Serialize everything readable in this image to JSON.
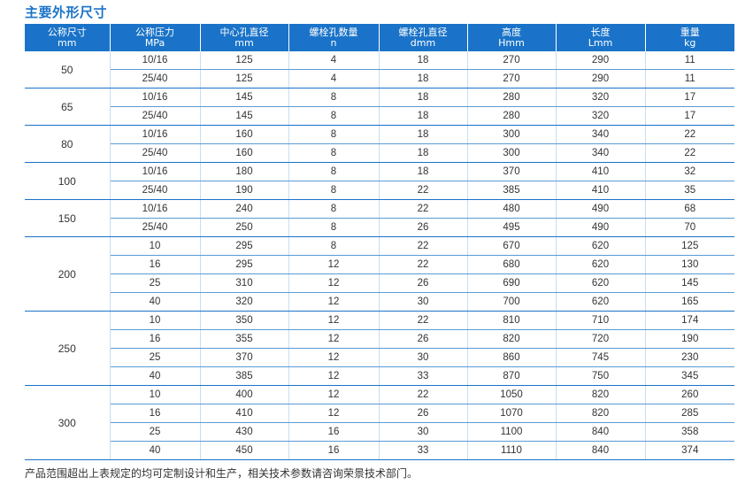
{
  "title": "主要外形尺寸",
  "headers": [
    {
      "line1": "公称尺寸",
      "line2": "mm"
    },
    {
      "line1": "公称压力",
      "line2": "MPa"
    },
    {
      "line1": "中心孔直径",
      "line2": "mm"
    },
    {
      "line1": "螺栓孔数量",
      "line2": "n"
    },
    {
      "line1": "螺栓孔直径",
      "line2": "dmm"
    },
    {
      "line1": "高度",
      "line2": "Hmm"
    },
    {
      "line1": "长度",
      "line2": "Lmm"
    },
    {
      "line1": "重量",
      "line2": "kg"
    }
  ],
  "groups": [
    {
      "size": "50",
      "rows": [
        [
          "10/16",
          "125",
          "4",
          "18",
          "270",
          "290",
          "11"
        ],
        [
          "25/40",
          "125",
          "4",
          "18",
          "270",
          "290",
          "11"
        ]
      ]
    },
    {
      "size": "65",
      "rows": [
        [
          "10/16",
          "145",
          "8",
          "18",
          "280",
          "320",
          "17"
        ],
        [
          "25/40",
          "145",
          "8",
          "18",
          "280",
          "320",
          "17"
        ]
      ]
    },
    {
      "size": "80",
      "rows": [
        [
          "10/16",
          "160",
          "8",
          "18",
          "300",
          "340",
          "22"
        ],
        [
          "25/40",
          "160",
          "8",
          "18",
          "300",
          "340",
          "22"
        ]
      ]
    },
    {
      "size": "100",
      "rows": [
        [
          "10/16",
          "180",
          "8",
          "18",
          "370",
          "410",
          "32"
        ],
        [
          "25/40",
          "190",
          "8",
          "22",
          "385",
          "410",
          "35"
        ]
      ]
    },
    {
      "size": "150",
      "rows": [
        [
          "10/16",
          "240",
          "8",
          "22",
          "480",
          "490",
          "68"
        ],
        [
          "25/40",
          "250",
          "8",
          "26",
          "495",
          "490",
          "70"
        ]
      ]
    },
    {
      "size": "200",
      "rows": [
        [
          "10",
          "295",
          "8",
          "22",
          "670",
          "620",
          "125"
        ],
        [
          "16",
          "295",
          "12",
          "22",
          "680",
          "620",
          "130"
        ],
        [
          "25",
          "310",
          "12",
          "26",
          "690",
          "620",
          "145"
        ],
        [
          "40",
          "320",
          "12",
          "30",
          "700",
          "620",
          "165"
        ]
      ]
    },
    {
      "size": "250",
      "rows": [
        [
          "10",
          "350",
          "12",
          "22",
          "810",
          "710",
          "174"
        ],
        [
          "16",
          "355",
          "12",
          "26",
          "820",
          "720",
          "190"
        ],
        [
          "25",
          "370",
          "12",
          "30",
          "860",
          "745",
          "230"
        ],
        [
          "40",
          "385",
          "12",
          "33",
          "870",
          "750",
          "345"
        ]
      ]
    },
    {
      "size": "300",
      "rows": [
        [
          "10",
          "400",
          "12",
          "22",
          "1050",
          "820",
          "260"
        ],
        [
          "16",
          "410",
          "12",
          "26",
          "1070",
          "820",
          "285"
        ],
        [
          "25",
          "430",
          "16",
          "30",
          "1100",
          "840",
          "358"
        ],
        [
          "40",
          "450",
          "16",
          "33",
          "1110",
          "840",
          "374"
        ]
      ]
    }
  ],
  "footnote": "产品范围超出上表规定的均可定制设计和生产，相关技术参数请咨询荣景技术部门。",
  "colors": {
    "accent": "#1a73c8",
    "header_text": "#ffffff",
    "body_text": "#333333"
  }
}
